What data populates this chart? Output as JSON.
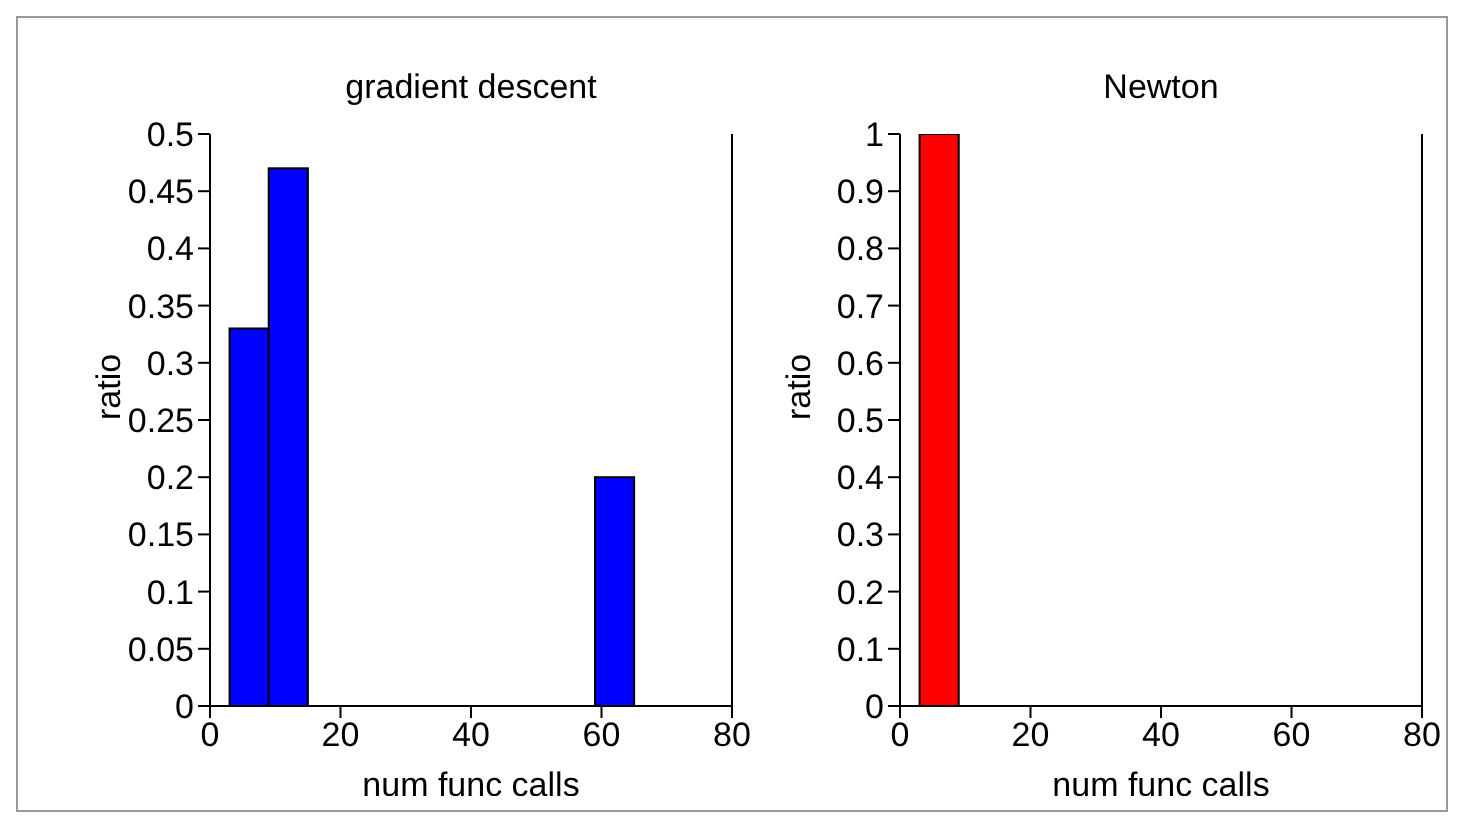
{
  "chart_data": [
    {
      "type": "histogram",
      "title": "gradient descent",
      "xlabel": "num func calls",
      "ylabel": "ratio",
      "bins": [
        3,
        9,
        15,
        59,
        65
      ],
      "values": [
        0.33,
        0.47,
        0,
        0.2
      ],
      "color": "#0000ff",
      "xlim": [
        0,
        80
      ],
      "xticks": [
        0,
        20,
        40,
        60,
        80
      ],
      "ylim": [
        0,
        0.5
      ],
      "yticks": [
        0,
        0.05,
        0.1,
        0.15,
        0.2,
        0.25,
        0.3,
        0.35,
        0.4,
        0.45,
        0.5
      ],
      "grid": false
    },
    {
      "type": "histogram",
      "title": "Newton",
      "xlabel": "num func calls",
      "ylabel": "ratio",
      "bins": [
        3,
        9
      ],
      "values": [
        1
      ],
      "color": "#ff0000",
      "xlim": [
        0,
        80
      ],
      "xticks": [
        0,
        20,
        40,
        60,
        80
      ],
      "ylim": [
        0,
        1
      ],
      "yticks": [
        0,
        0.1,
        0.2,
        0.3,
        0.4,
        0.5,
        0.6,
        0.7,
        0.8,
        0.9,
        1
      ],
      "grid": false
    }
  ]
}
